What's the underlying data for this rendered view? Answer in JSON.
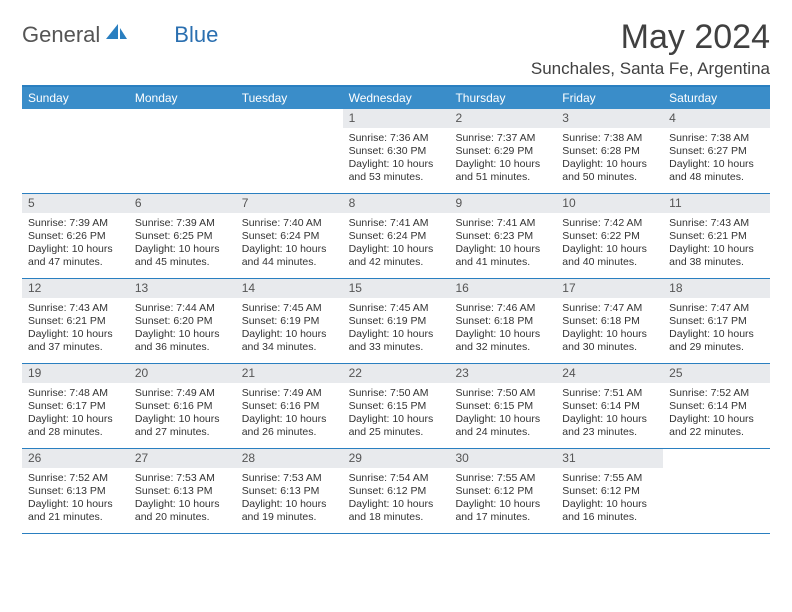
{
  "logo": {
    "text_general": "General",
    "text_blue": "Blue"
  },
  "title": "May 2024",
  "location": "Sunchales, Santa Fe, Argentina",
  "colors": {
    "header_bg": "#3a8dc9",
    "border": "#2a7fc0",
    "daynum_bg": "#e8eaed",
    "text": "#333333",
    "blue_accent": "#2a6fb0"
  },
  "day_headers": [
    "Sunday",
    "Monday",
    "Tuesday",
    "Wednesday",
    "Thursday",
    "Friday",
    "Saturday"
  ],
  "weeks": [
    [
      null,
      null,
      null,
      {
        "n": "1",
        "sr": "7:36 AM",
        "ss": "6:30 PM",
        "dl": "10 hours and 53 minutes."
      },
      {
        "n": "2",
        "sr": "7:37 AM",
        "ss": "6:29 PM",
        "dl": "10 hours and 51 minutes."
      },
      {
        "n": "3",
        "sr": "7:38 AM",
        "ss": "6:28 PM",
        "dl": "10 hours and 50 minutes."
      },
      {
        "n": "4",
        "sr": "7:38 AM",
        "ss": "6:27 PM",
        "dl": "10 hours and 48 minutes."
      }
    ],
    [
      {
        "n": "5",
        "sr": "7:39 AM",
        "ss": "6:26 PM",
        "dl": "10 hours and 47 minutes."
      },
      {
        "n": "6",
        "sr": "7:39 AM",
        "ss": "6:25 PM",
        "dl": "10 hours and 45 minutes."
      },
      {
        "n": "7",
        "sr": "7:40 AM",
        "ss": "6:24 PM",
        "dl": "10 hours and 44 minutes."
      },
      {
        "n": "8",
        "sr": "7:41 AM",
        "ss": "6:24 PM",
        "dl": "10 hours and 42 minutes."
      },
      {
        "n": "9",
        "sr": "7:41 AM",
        "ss": "6:23 PM",
        "dl": "10 hours and 41 minutes."
      },
      {
        "n": "10",
        "sr": "7:42 AM",
        "ss": "6:22 PM",
        "dl": "10 hours and 40 minutes."
      },
      {
        "n": "11",
        "sr": "7:43 AM",
        "ss": "6:21 PM",
        "dl": "10 hours and 38 minutes."
      }
    ],
    [
      {
        "n": "12",
        "sr": "7:43 AM",
        "ss": "6:21 PM",
        "dl": "10 hours and 37 minutes."
      },
      {
        "n": "13",
        "sr": "7:44 AM",
        "ss": "6:20 PM",
        "dl": "10 hours and 36 minutes."
      },
      {
        "n": "14",
        "sr": "7:45 AM",
        "ss": "6:19 PM",
        "dl": "10 hours and 34 minutes."
      },
      {
        "n": "15",
        "sr": "7:45 AM",
        "ss": "6:19 PM",
        "dl": "10 hours and 33 minutes."
      },
      {
        "n": "16",
        "sr": "7:46 AM",
        "ss": "6:18 PM",
        "dl": "10 hours and 32 minutes."
      },
      {
        "n": "17",
        "sr": "7:47 AM",
        "ss": "6:18 PM",
        "dl": "10 hours and 30 minutes."
      },
      {
        "n": "18",
        "sr": "7:47 AM",
        "ss": "6:17 PM",
        "dl": "10 hours and 29 minutes."
      }
    ],
    [
      {
        "n": "19",
        "sr": "7:48 AM",
        "ss": "6:17 PM",
        "dl": "10 hours and 28 minutes."
      },
      {
        "n": "20",
        "sr": "7:49 AM",
        "ss": "6:16 PM",
        "dl": "10 hours and 27 minutes."
      },
      {
        "n": "21",
        "sr": "7:49 AM",
        "ss": "6:16 PM",
        "dl": "10 hours and 26 minutes."
      },
      {
        "n": "22",
        "sr": "7:50 AM",
        "ss": "6:15 PM",
        "dl": "10 hours and 25 minutes."
      },
      {
        "n": "23",
        "sr": "7:50 AM",
        "ss": "6:15 PM",
        "dl": "10 hours and 24 minutes."
      },
      {
        "n": "24",
        "sr": "7:51 AM",
        "ss": "6:14 PM",
        "dl": "10 hours and 23 minutes."
      },
      {
        "n": "25",
        "sr": "7:52 AM",
        "ss": "6:14 PM",
        "dl": "10 hours and 22 minutes."
      }
    ],
    [
      {
        "n": "26",
        "sr": "7:52 AM",
        "ss": "6:13 PM",
        "dl": "10 hours and 21 minutes."
      },
      {
        "n": "27",
        "sr": "7:53 AM",
        "ss": "6:13 PM",
        "dl": "10 hours and 20 minutes."
      },
      {
        "n": "28",
        "sr": "7:53 AM",
        "ss": "6:13 PM",
        "dl": "10 hours and 19 minutes."
      },
      {
        "n": "29",
        "sr": "7:54 AM",
        "ss": "6:12 PM",
        "dl": "10 hours and 18 minutes."
      },
      {
        "n": "30",
        "sr": "7:55 AM",
        "ss": "6:12 PM",
        "dl": "10 hours and 17 minutes."
      },
      {
        "n": "31",
        "sr": "7:55 AM",
        "ss": "6:12 PM",
        "dl": "10 hours and 16 minutes."
      },
      null
    ]
  ],
  "labels": {
    "sunrise": "Sunrise:",
    "sunset": "Sunset:",
    "daylight": "Daylight:"
  }
}
